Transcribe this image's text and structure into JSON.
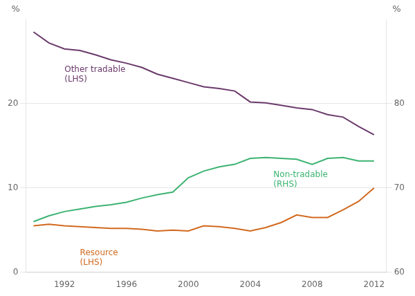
{
  "chart_data": {
    "type": "line",
    "x": [
      1990,
      1991,
      1992,
      1993,
      1994,
      1995,
      1996,
      1997,
      1998,
      1999,
      2000,
      2001,
      2002,
      2003,
      2004,
      2005,
      2006,
      2007,
      2008,
      2009,
      2010,
      2011,
      2012
    ],
    "series": [
      {
        "color": "#6B3A6B",
        "axis": "y",
        "values": [
          28.5,
          27.2,
          26.5,
          26.3,
          25.8,
          25.2,
          24.8,
          24.3,
          23.5,
          23.0,
          22.5,
          22.0,
          21.8,
          21.5,
          20.2,
          20.1,
          19.8,
          19.5,
          19.3,
          18.7,
          18.4,
          17.3,
          16.3
        ]
      },
      {
        "color": "#D2691E",
        "axis": "y",
        "values": [
          5.5,
          5.7,
          5.5,
          5.4,
          5.3,
          5.2,
          5.2,
          5.1,
          4.9,
          5.0,
          4.9,
          5.5,
          5.4,
          5.2,
          4.9,
          5.3,
          5.9,
          6.8,
          6.5,
          6.5,
          7.4,
          8.4,
          10.0
        ]
      },
      {
        "color": "#3CB371",
        "axis": "y2",
        "values": [
          66.0,
          66.7,
          67.2,
          67.5,
          67.8,
          68.0,
          68.3,
          68.8,
          69.2,
          69.5,
          71.2,
          72.0,
          72.5,
          72.8,
          73.5,
          73.6,
          73.5,
          73.4,
          72.8,
          73.5,
          73.6,
          73.2,
          73.2
        ]
      }
    ],
    "xlim": [
      1989.5,
      2012.8
    ],
    "xticks": [
      1992,
      1996,
      2000,
      2004,
      2008,
      2012
    ],
    "ylim": [
      0,
      30
    ],
    "yticks": [
      0,
      10,
      20
    ],
    "y2lim": [
      60,
      90
    ],
    "y2ticks": [
      60,
      70,
      80
    ],
    "ylabel": "%",
    "y2label": "%",
    "grid": true,
    "annotations": [
      {
        "text": "Other tradable\n(LHS)",
        "x": 1992.0,
        "y": 24.5,
        "axis": "y",
        "color": "#6B3A6B"
      },
      {
        "text": "Resource\n(LHS)",
        "x": 1993.0,
        "y": 2.8,
        "axis": "y",
        "color": "#D2691E"
      },
      {
        "text": "Non-tradable\n(RHS)",
        "x": 2005.5,
        "y": 72.0,
        "axis": "y2",
        "color": "#3CB371"
      }
    ]
  }
}
